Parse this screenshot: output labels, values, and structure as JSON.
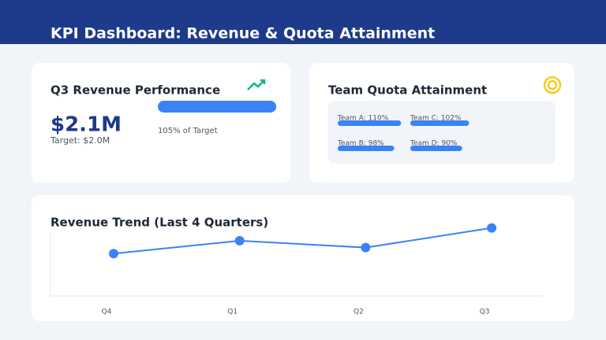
{
  "header": {
    "title": "KPI Dashboard: Revenue & Quota Attainment"
  },
  "revenue_card": {
    "title": "Q3 Revenue Performance",
    "value": "$2.1M",
    "target": "Target: $2.0M",
    "progress_label": "105% of Target",
    "progress": 105
  },
  "quota_card": {
    "title": "Team Quota Attainment",
    "teams": [
      {
        "label": "Team A: 110%",
        "value": 110
      },
      {
        "label": "Team C: 102%",
        "value": 102
      },
      {
        "label": "Team B: 98%",
        "value": 98
      },
      {
        "label": "Team D: 90%",
        "value": 90
      }
    ]
  },
  "chart_data": {
    "type": "line",
    "title": "Revenue Trend (Last 4 Quarters)",
    "categories": [
      "Q4",
      "Q1",
      "Q2",
      "Q3"
    ],
    "values": [
      1.76,
      1.93,
      1.84,
      2.1
    ],
    "color": "#3b82f6",
    "ylim": [
      1.2,
      2.2
    ]
  }
}
